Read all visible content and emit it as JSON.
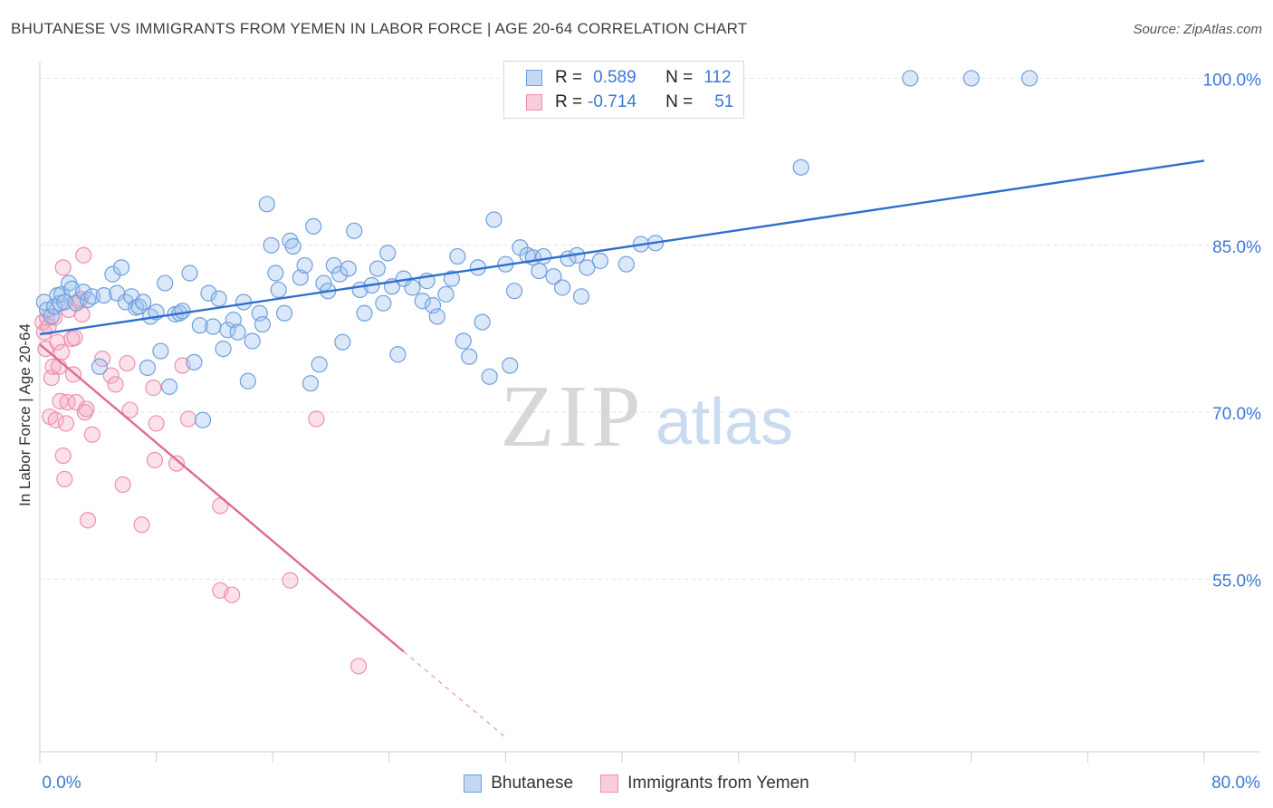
{
  "title": "BHUTANESE VS IMMIGRANTS FROM YEMEN IN LABOR FORCE | AGE 20-64 CORRELATION CHART",
  "source": "Source: ZipAtlas.com",
  "watermark": {
    "zip": "ZIP",
    "atlas": "atlas"
  },
  "legend": {
    "r_label": "R =",
    "n_label": "N =",
    "rows": [
      {
        "r": "0.589",
        "n": "112"
      },
      {
        "r": "-0.714",
        "n": "51"
      }
    ]
  },
  "chart_data": {
    "type": "scatter",
    "title": "BHUTANESE VS IMMIGRANTS FROM YEMEN IN LABOR FORCE | AGE 20-64 CORRELATION CHART",
    "xlabel": "",
    "ylabel": "In Labor Force | Age 20-64",
    "xlim": [
      0,
      80
    ],
    "ylim": [
      39.5,
      101.5
    ],
    "x_tick_labels": [
      "0.0%",
      "80.0%"
    ],
    "y_ticks": [
      55,
      70,
      85,
      100
    ],
    "y_tick_labels": [
      "55.0%",
      "70.0%",
      "85.0%",
      "100.0%"
    ],
    "grid": true,
    "legend_position": "top-center",
    "colors": {
      "bhutanese": "#6f9fdc",
      "yemen": "#ef8fae",
      "blue_line": "#2f6fcf",
      "pink_line": "#e0689a"
    },
    "series": [
      {
        "name": "Bhutanese",
        "color": "#6f9fdc",
        "trend": {
          "x0": 0,
          "y0": 77.0,
          "x1": 80,
          "y1": 92.6
        },
        "points": [
          [
            0.3,
            79.9
          ],
          [
            0.5,
            79.2
          ],
          [
            0.8,
            78.6
          ],
          [
            1.0,
            79.5
          ],
          [
            1.2,
            80.5
          ],
          [
            1.4,
            79.8
          ],
          [
            1.5,
            80.6
          ],
          [
            1.7,
            79.9
          ],
          [
            2.0,
            81.6
          ],
          [
            2.2,
            81.1
          ],
          [
            2.5,
            79.8
          ],
          [
            3.0,
            80.8
          ],
          [
            3.3,
            80.1
          ],
          [
            3.6,
            80.4
          ],
          [
            4.1,
            74.1
          ],
          [
            4.4,
            80.5
          ],
          [
            5.0,
            82.4
          ],
          [
            5.3,
            80.7
          ],
          [
            5.6,
            83.0
          ],
          [
            5.9,
            79.9
          ],
          [
            6.3,
            80.4
          ],
          [
            6.6,
            79.4
          ],
          [
            6.8,
            79.5
          ],
          [
            7.1,
            79.9
          ],
          [
            7.4,
            74.0
          ],
          [
            7.6,
            78.6
          ],
          [
            8.0,
            79.0
          ],
          [
            8.3,
            75.5
          ],
          [
            8.6,
            81.6
          ],
          [
            8.9,
            72.3
          ],
          [
            9.3,
            78.8
          ],
          [
            9.6,
            78.9
          ],
          [
            9.8,
            79.1
          ],
          [
            10.3,
            82.5
          ],
          [
            10.6,
            74.5
          ],
          [
            11.0,
            77.8
          ],
          [
            11.2,
            69.3
          ],
          [
            11.6,
            80.7
          ],
          [
            11.9,
            77.7
          ],
          [
            12.3,
            80.2
          ],
          [
            12.6,
            75.7
          ],
          [
            12.9,
            77.4
          ],
          [
            13.3,
            78.3
          ],
          [
            13.6,
            77.2
          ],
          [
            14.0,
            79.9
          ],
          [
            14.3,
            72.8
          ],
          [
            14.6,
            76.4
          ],
          [
            15.1,
            78.9
          ],
          [
            15.3,
            77.9
          ],
          [
            15.6,
            88.7
          ],
          [
            15.9,
            85.0
          ],
          [
            16.2,
            82.5
          ],
          [
            16.4,
            81.0
          ],
          [
            16.8,
            78.9
          ],
          [
            17.2,
            85.4
          ],
          [
            17.4,
            84.9
          ],
          [
            17.9,
            82.1
          ],
          [
            18.2,
            83.2
          ],
          [
            18.6,
            72.6
          ],
          [
            18.8,
            86.7
          ],
          [
            19.2,
            74.3
          ],
          [
            19.5,
            81.6
          ],
          [
            19.8,
            80.9
          ],
          [
            20.2,
            83.2
          ],
          [
            20.6,
            82.4
          ],
          [
            20.8,
            76.3
          ],
          [
            21.2,
            82.9
          ],
          [
            21.6,
            86.3
          ],
          [
            22.0,
            81.0
          ],
          [
            22.3,
            78.9
          ],
          [
            22.8,
            81.4
          ],
          [
            23.2,
            82.9
          ],
          [
            23.6,
            79.8
          ],
          [
            23.9,
            84.3
          ],
          [
            24.2,
            81.3
          ],
          [
            24.6,
            75.2
          ],
          [
            25.0,
            82.0
          ],
          [
            25.6,
            81.2
          ],
          [
            26.3,
            80.0
          ],
          [
            26.6,
            81.8
          ],
          [
            27.0,
            79.6
          ],
          [
            27.3,
            78.6
          ],
          [
            27.9,
            80.6
          ],
          [
            28.3,
            82.0
          ],
          [
            28.7,
            84.0
          ],
          [
            29.1,
            76.4
          ],
          [
            29.5,
            75.0
          ],
          [
            30.1,
            83.0
          ],
          [
            30.4,
            78.1
          ],
          [
            30.9,
            73.2
          ],
          [
            31.2,
            87.3
          ],
          [
            32.0,
            83.3
          ],
          [
            32.3,
            74.2
          ],
          [
            32.6,
            80.9
          ],
          [
            33.0,
            84.8
          ],
          [
            33.5,
            84.1
          ],
          [
            33.9,
            83.9
          ],
          [
            34.3,
            82.7
          ],
          [
            34.6,
            84.0
          ],
          [
            35.3,
            82.2
          ],
          [
            35.9,
            81.2
          ],
          [
            36.3,
            83.8
          ],
          [
            36.9,
            84.1
          ],
          [
            37.2,
            80.4
          ],
          [
            37.6,
            83.0
          ],
          [
            38.5,
            83.6
          ],
          [
            40.3,
            83.3
          ],
          [
            41.3,
            85.1
          ],
          [
            42.3,
            85.2
          ],
          [
            52.3,
            92.0
          ],
          [
            59.8,
            100.0
          ],
          [
            64.0,
            100.0
          ],
          [
            68.0,
            100.0
          ]
        ]
      },
      {
        "name": "Immigrants from Yemen",
        "color": "#ef8fae",
        "trend": {
          "x0": 0,
          "y0": 76.1,
          "x1": 25.0,
          "y1": 48.5,
          "dash_to_x": 32.0,
          "dash_to_y": 40.8
        },
        "points": [
          [
            0.2,
            78.1
          ],
          [
            0.3,
            77.2
          ],
          [
            0.4,
            75.7
          ],
          [
            0.5,
            78.5
          ],
          [
            0.6,
            77.7
          ],
          [
            0.7,
            69.6
          ],
          [
            0.8,
            73.1
          ],
          [
            0.9,
            74.1
          ],
          [
            1.0,
            78.5
          ],
          [
            1.1,
            69.3
          ],
          [
            1.2,
            76.3
          ],
          [
            1.3,
            74.1
          ],
          [
            1.4,
            71.0
          ],
          [
            1.5,
            75.4
          ],
          [
            1.6,
            66.1
          ],
          [
            1.7,
            64.0
          ],
          [
            1.8,
            69.0
          ],
          [
            1.9,
            70.9
          ],
          [
            2.0,
            79.2
          ],
          [
            2.2,
            76.6
          ],
          [
            2.3,
            73.4
          ],
          [
            2.4,
            76.7
          ],
          [
            2.5,
            70.9
          ],
          [
            2.7,
            80.0
          ],
          [
            2.9,
            78.8
          ],
          [
            3.0,
            84.1
          ],
          [
            3.1,
            70.0
          ],
          [
            3.2,
            70.3
          ],
          [
            3.3,
            60.3
          ],
          [
            3.6,
            68.0
          ],
          [
            4.3,
            74.8
          ],
          [
            4.9,
            73.3
          ],
          [
            5.2,
            72.5
          ],
          [
            5.7,
            63.5
          ],
          [
            6.0,
            74.4
          ],
          [
            6.2,
            70.2
          ],
          [
            7.0,
            59.9
          ],
          [
            7.8,
            72.2
          ],
          [
            7.9,
            65.7
          ],
          [
            8.0,
            69.0
          ],
          [
            9.4,
            65.4
          ],
          [
            9.8,
            74.2
          ],
          [
            10.2,
            69.4
          ],
          [
            12.4,
            61.6
          ],
          [
            12.4,
            54.0
          ],
          [
            13.2,
            53.6
          ],
          [
            17.2,
            54.9
          ],
          [
            19.0,
            69.4
          ],
          [
            21.9,
            47.2
          ],
          [
            1.6,
            83.0
          ],
          [
            2.8,
            80.2
          ]
        ]
      }
    ]
  },
  "bottom_legend": [
    "Bhutanese",
    "Immigrants from Yemen"
  ]
}
